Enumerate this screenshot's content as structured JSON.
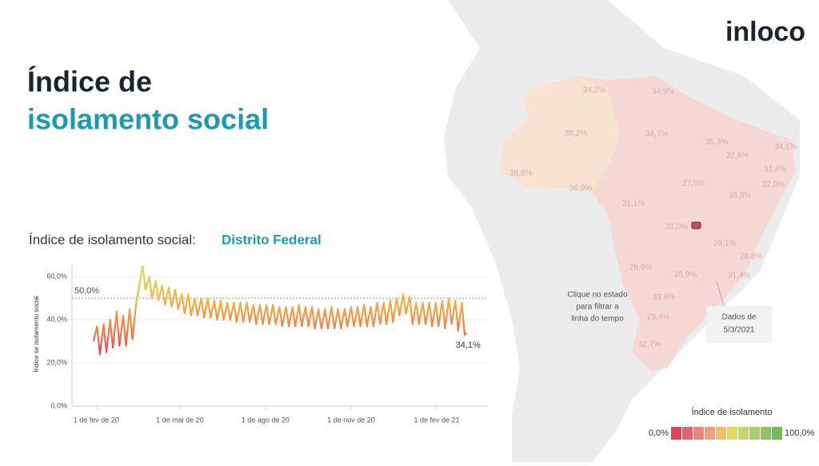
{
  "logo": "inloco",
  "header": {
    "line1": "Índice de",
    "line2": "isolamento social"
  },
  "map": {
    "labels": [
      "34,2%",
      "34,9%",
      "38,2%",
      "34,7%",
      "35,3%",
      "32,8%",
      "34,1%",
      "31,4%",
      "38,6%",
      "36,9%",
      "27,5%",
      "32,0%",
      "35,8%",
      "31,1%",
      "31,0%",
      "29,1%",
      "28,8%",
      "29,9%",
      "28,9%",
      "31,4%",
      "33,9%",
      "29,4%",
      "32,7%"
    ],
    "hint": [
      "Clique no estado",
      "para filtrar a",
      "linha do tempo"
    ],
    "date_note": [
      "Dados de",
      "5/3/2021"
    ]
  },
  "legend": {
    "title": "Índice de isolamento",
    "min": "0,0%",
    "max": "100,0%",
    "colors": [
      "#e0405e",
      "#e6616a",
      "#ec8578",
      "#f0a07a",
      "#f3c066",
      "#e8d85a",
      "#c9d56a",
      "#a9cf6a",
      "#8cc563",
      "#74ba5a"
    ]
  },
  "chart_data": {
    "type": "line",
    "title": "Índice de isolamento social:",
    "title_highlight": "Distrito Federal",
    "y_label": "Índice se isolamento social",
    "color_stops": [
      "#e0405e",
      "#ee7b4e",
      "#f3ae42",
      "#e2d64a"
    ],
    "xlim": [
      "2020-01-06",
      "2021-03-28"
    ],
    "xticks": [
      {
        "value": "2020-02-01",
        "label": "1 de fev de 20"
      },
      {
        "value": "2020-05-01",
        "label": "1 de mai de 20"
      },
      {
        "value": "2020-08-01",
        "label": "1 de ago de 20"
      },
      {
        "value": "2020-11-01",
        "label": "1 de nov de 20"
      },
      {
        "value": "2021-02-01",
        "label": "1 de fev de 21"
      }
    ],
    "ylim": [
      0,
      66
    ],
    "yticks": [
      {
        "value": 0,
        "label": "0,0%"
      },
      {
        "value": 20,
        "label": "20,0%"
      },
      {
        "value": 40,
        "label": "40,0%"
      },
      {
        "value": 60,
        "label": "60,0%"
      }
    ],
    "grid": true,
    "reference_line": {
      "value": 50,
      "label": "50,0%"
    },
    "annotation": {
      "label": "34,1%"
    },
    "x": [
      "2020-01-29",
      "2020-02-02",
      "2020-02-05",
      "2020-02-09",
      "2020-02-12",
      "2020-02-16",
      "2020-02-19",
      "2020-02-23",
      "2020-02-26",
      "2020-03-01",
      "2020-03-04",
      "2020-03-08",
      "2020-03-11",
      "2020-03-15",
      "2020-03-18",
      "2020-03-22",
      "2020-03-25",
      "2020-03-29",
      "2020-04-01",
      "2020-04-05",
      "2020-04-08",
      "2020-04-12",
      "2020-04-15",
      "2020-04-19",
      "2020-04-22",
      "2020-04-26",
      "2020-04-29",
      "2020-05-03",
      "2020-05-06",
      "2020-05-10",
      "2020-05-13",
      "2020-05-17",
      "2020-05-20",
      "2020-05-24",
      "2020-05-27",
      "2020-05-31",
      "2020-06-03",
      "2020-06-07",
      "2020-06-10",
      "2020-06-14",
      "2020-06-17",
      "2020-06-21",
      "2020-06-24",
      "2020-06-28",
      "2020-07-01",
      "2020-07-05",
      "2020-07-08",
      "2020-07-12",
      "2020-07-15",
      "2020-07-19",
      "2020-07-22",
      "2020-07-26",
      "2020-07-29",
      "2020-08-02",
      "2020-08-05",
      "2020-08-09",
      "2020-08-12",
      "2020-08-16",
      "2020-08-19",
      "2020-08-23",
      "2020-08-26",
      "2020-08-30",
      "2020-09-02",
      "2020-09-06",
      "2020-09-09",
      "2020-09-13",
      "2020-09-16",
      "2020-09-20",
      "2020-09-23",
      "2020-09-27",
      "2020-09-30",
      "2020-10-04",
      "2020-10-07",
      "2020-10-11",
      "2020-10-14",
      "2020-10-18",
      "2020-10-21",
      "2020-10-25",
      "2020-10-28",
      "2020-11-01",
      "2020-11-04",
      "2020-11-08",
      "2020-11-11",
      "2020-11-15",
      "2020-11-18",
      "2020-11-22",
      "2020-11-25",
      "2020-11-29",
      "2020-12-02",
      "2020-12-06",
      "2020-12-09",
      "2020-12-13",
      "2020-12-16",
      "2020-12-20",
      "2020-12-23",
      "2020-12-27",
      "2020-12-30",
      "2021-01-03",
      "2021-01-06",
      "2021-01-10",
      "2021-01-13",
      "2021-01-17",
      "2021-01-20",
      "2021-01-24",
      "2021-01-27",
      "2021-01-31",
      "2021-02-03",
      "2021-02-07",
      "2021-02-10",
      "2021-02-14",
      "2021-02-17",
      "2021-02-21",
      "2021-02-24",
      "2021-02-28",
      "2021-03-03",
      "2021-03-05"
    ],
    "series": [
      {
        "name": "Distrito Federal",
        "values": [
          30,
          37,
          24,
          38,
          25,
          40,
          27,
          44,
          28,
          42,
          28,
          45,
          31,
          48,
          55,
          65,
          54,
          60,
          50,
          58,
          49,
          56,
          47,
          55,
          46,
          54,
          45,
          52,
          43,
          52,
          42,
          50,
          42,
          50,
          41,
          50,
          41,
          49,
          40,
          49,
          40,
          48,
          40,
          48,
          39,
          48,
          39,
          48,
          39,
          47,
          38,
          47,
          38,
          47,
          38,
          47,
          38,
          46,
          37,
          46,
          37,
          46,
          37,
          47,
          37,
          46,
          37,
          46,
          36,
          45,
          36,
          45,
          36,
          46,
          36,
          45,
          36,
          45,
          37,
          46,
          37,
          46,
          37,
          47,
          37,
          46,
          37,
          48,
          38,
          48,
          38,
          49,
          39,
          50,
          42,
          52,
          43,
          51,
          38,
          48,
          38,
          48,
          38,
          48,
          37,
          48,
          37,
          49,
          36,
          50,
          38,
          49,
          35,
          48,
          33,
          34.1
        ]
      }
    ]
  }
}
